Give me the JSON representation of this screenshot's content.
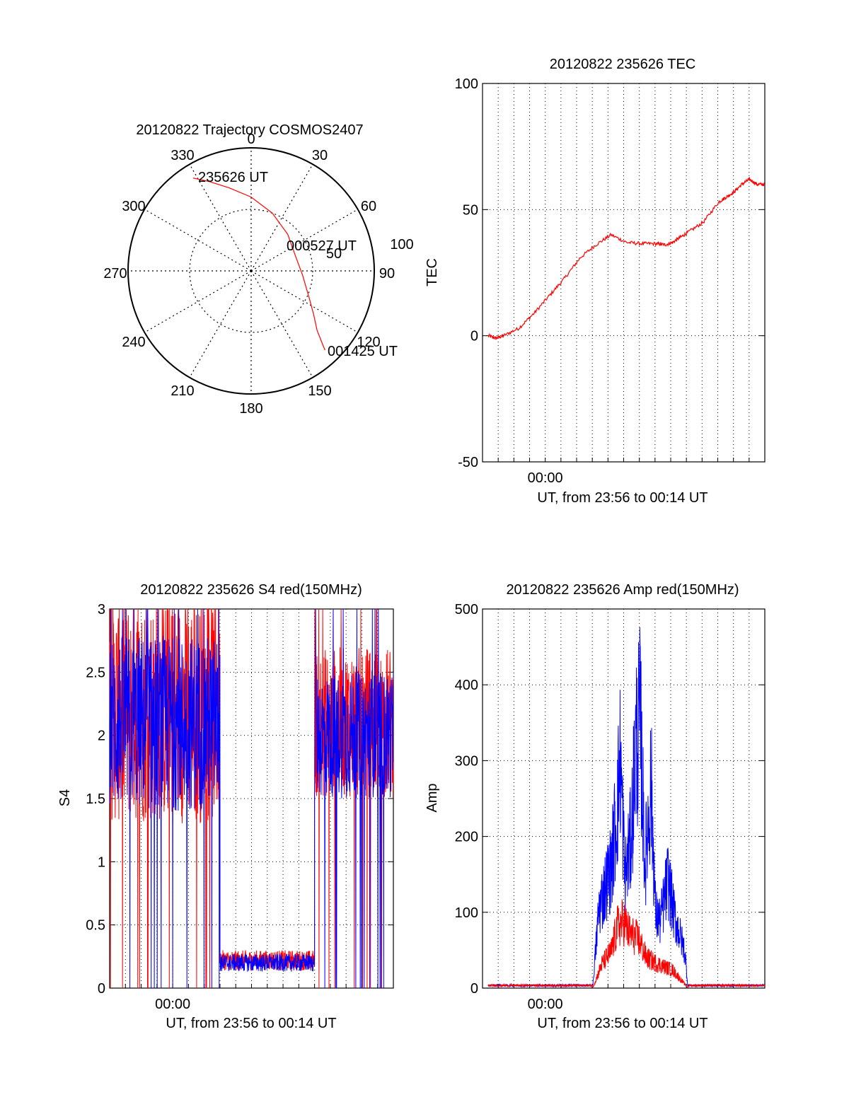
{
  "chart_data": [
    {
      "type": "polar",
      "title": "20120822 Trajectory COSMOS2407",
      "angle_labels": [
        "0",
        "30",
        "60",
        "90",
        "120",
        "150",
        "180",
        "210",
        "240",
        "270",
        "300",
        "330"
      ],
      "radius_labels": [
        "50",
        "100"
      ],
      "series": [
        {
          "color": "#ff0000",
          "points": [
            [
              328,
              89
            ],
            [
              335,
              80
            ],
            [
              345,
              70
            ],
            [
              0,
              60
            ],
            [
              20,
              50
            ],
            [
              45,
              42
            ],
            [
              70,
              38
            ],
            [
              95,
              42
            ],
            [
              115,
              52
            ],
            [
              125,
              62
            ],
            [
              132,
              72
            ],
            [
              136,
              84
            ],
            [
              137,
              88
            ]
          ]
        }
      ],
      "annotations": [
        "235626 UT",
        "000527 UT",
        "001425 UT"
      ]
    },
    {
      "type": "line",
      "title": "20120822 235626 TEC",
      "xlabel": "UT, from 23:56 to 00:14 UT",
      "ylabel": "TEC",
      "xtick_labels": [
        "00:00"
      ],
      "ylim": [
        -50,
        100
      ],
      "yticks": [
        -50,
        0,
        50,
        100
      ],
      "series": [
        {
          "color": "#ff0000",
          "x": [
            0,
            0.5,
            1,
            2,
            3,
            4,
            5,
            6,
            7,
            8,
            9,
            10,
            11,
            11.5,
            12,
            12.5,
            13,
            14,
            15,
            15.5,
            16,
            16.5,
            17,
            17.5,
            18
          ],
          "y": [
            0,
            -1,
            0,
            3,
            9,
            16,
            23,
            31,
            36,
            40,
            37,
            36.5,
            36.5,
            36,
            37,
            39,
            41,
            45,
            53,
            55,
            57,
            60,
            62,
            60,
            60
          ]
        }
      ]
    },
    {
      "type": "line",
      "title": "20120822 235626 S4 red(150MHz)",
      "xlabel": "UT, from 23:56 to 00:14 UT",
      "ylabel": "S4",
      "xtick_labels": [
        "00:00"
      ],
      "ylim": [
        0,
        3
      ],
      "yticks": [
        0,
        0.5,
        1,
        1.5,
        2,
        2.5,
        3
      ],
      "yticklabels": [
        "0",
        "0.5",
        "1",
        "1.5",
        "2",
        "2.5",
        "3"
      ],
      "series": [
        {
          "color": "#ff0000",
          "segments": [
            [
              0,
              7,
              2.2,
              0.9
            ],
            [
              7,
              13,
              0.22,
              0.08
            ],
            [
              13,
              18,
              2.1,
              0.6
            ]
          ]
        },
        {
          "color": "#0000ff",
          "segments": [
            [
              0,
              7,
              2.1,
              0.7
            ],
            [
              7,
              13,
              0.2,
              0.07
            ],
            [
              13,
              18,
              2.0,
              0.5
            ]
          ]
        }
      ]
    },
    {
      "type": "line",
      "title": "20120822 235626 Amp red(150MHz)",
      "xlabel": "UT, from 23:56 to 00:14 UT",
      "ylabel": "Amp",
      "xtick_labels": [
        "00:00"
      ],
      "ylim": [
        0,
        500
      ],
      "yticks": [
        0,
        100,
        200,
        300,
        400,
        500
      ],
      "series": [
        {
          "color": "#0000ff",
          "peaks": [
            [
              6.8,
              0
            ],
            [
              7.2,
              130
            ],
            [
              8,
              200
            ],
            [
              8.4,
              300
            ],
            [
              8.6,
              380
            ],
            [
              8.9,
              180
            ],
            [
              9.3,
              250
            ],
            [
              9.6,
              400
            ],
            [
              9.9,
              440
            ],
            [
              10.2,
              200
            ],
            [
              10.6,
              340
            ],
            [
              10.9,
              120
            ],
            [
              11.2,
              110
            ],
            [
              11.7,
              180
            ],
            [
              12.1,
              120
            ],
            [
              12.8,
              60
            ],
            [
              13,
              0
            ]
          ]
        },
        {
          "color": "#ff0000",
          "peaks": [
            [
              6.8,
              0
            ],
            [
              7.4,
              40
            ],
            [
              8,
              60
            ],
            [
              8.4,
              100
            ],
            [
              8.8,
              110
            ],
            [
              9.2,
              90
            ],
            [
              9.8,
              80
            ],
            [
              10.3,
              50
            ],
            [
              11,
              40
            ],
            [
              12,
              30
            ],
            [
              13,
              0
            ]
          ]
        }
      ]
    }
  ]
}
